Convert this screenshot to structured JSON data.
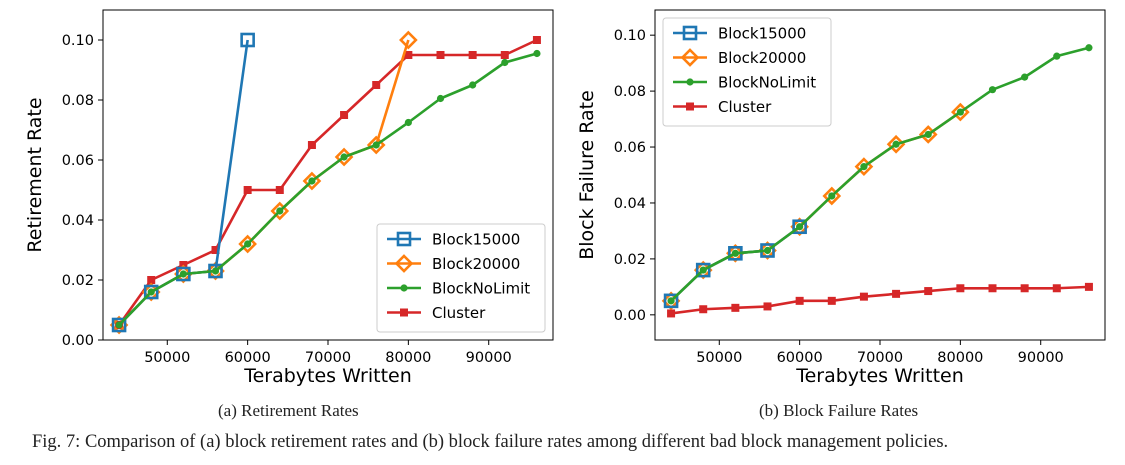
{
  "colors": {
    "block15000": "#1f77b4",
    "block20000": "#ff7f0e",
    "blocknolimit": "#2ca02c",
    "cluster": "#d62728"
  },
  "chart_data": [
    {
      "type": "line",
      "subcaption": "(a) Retirement Rates",
      "xlabel": "Terabytes Written",
      "ylabel": "Retirement Rate",
      "xlim": [
        42000,
        98000
      ],
      "ylim": [
        0.0,
        0.11
      ],
      "xticks": [
        50000,
        60000,
        70000,
        80000,
        90000
      ],
      "yticks": [
        0.0,
        0.02,
        0.04,
        0.06,
        0.08,
        0.1
      ],
      "ytick_labels": [
        "0.00",
        "0.02",
        "0.04",
        "0.06",
        "0.08",
        "0.10"
      ],
      "legend_loc": "lower-right",
      "grid": false,
      "series": [
        {
          "name": "Block15000",
          "marker": "square-open",
          "x": [
            44000,
            48000,
            52000,
            56000,
            60000
          ],
          "y": [
            0.005,
            0.016,
            0.022,
            0.023,
            0.1
          ]
        },
        {
          "name": "Block20000",
          "marker": "diamond-open",
          "x": [
            44000,
            48000,
            52000,
            56000,
            60000,
            64000,
            68000,
            72000,
            76000,
            80000
          ],
          "y": [
            0.005,
            0.016,
            0.022,
            0.023,
            0.032,
            0.043,
            0.053,
            0.061,
            0.065,
            0.1
          ]
        },
        {
          "name": "BlockNoLimit",
          "marker": "circle",
          "x": [
            44000,
            48000,
            52000,
            56000,
            60000,
            64000,
            68000,
            72000,
            76000,
            80000,
            84000,
            88000,
            92000,
            96000
          ],
          "y": [
            0.005,
            0.016,
            0.022,
            0.023,
            0.032,
            0.043,
            0.053,
            0.061,
            0.065,
            0.0725,
            0.0805,
            0.085,
            0.0925,
            0.0955
          ]
        },
        {
          "name": "Cluster",
          "marker": "square",
          "x": [
            44000,
            48000,
            52000,
            56000,
            60000,
            64000,
            68000,
            72000,
            76000,
            80000,
            84000,
            88000,
            92000,
            96000
          ],
          "y": [
            0.005,
            0.02,
            0.025,
            0.03,
            0.05,
            0.05,
            0.065,
            0.075,
            0.085,
            0.095,
            0.095,
            0.095,
            0.095,
            0.1
          ]
        }
      ]
    },
    {
      "type": "line",
      "subcaption": "(b) Block Failure Rates",
      "xlabel": "Terabytes Written",
      "ylabel": "Block Failure Rate",
      "xlim": [
        42000,
        98000
      ],
      "ylim": [
        -0.009,
        0.109
      ],
      "xticks": [
        50000,
        60000,
        70000,
        80000,
        90000
      ],
      "yticks": [
        0.0,
        0.02,
        0.04,
        0.06,
        0.08,
        0.1
      ],
      "ytick_labels": [
        "0.00",
        "0.02",
        "0.04",
        "0.06",
        "0.08",
        "0.10"
      ],
      "legend_loc": "upper-left",
      "grid": false,
      "series": [
        {
          "name": "Block15000",
          "marker": "square-open",
          "x": [
            44000,
            48000,
            52000,
            56000,
            60000
          ],
          "y": [
            0.005,
            0.016,
            0.022,
            0.023,
            0.0315
          ]
        },
        {
          "name": "Block20000",
          "marker": "diamond-open",
          "x": [
            44000,
            48000,
            52000,
            56000,
            60000,
            64000,
            68000,
            72000,
            76000,
            80000
          ],
          "y": [
            0.005,
            0.016,
            0.022,
            0.023,
            0.0315,
            0.0425,
            0.053,
            0.061,
            0.0645,
            0.0725
          ]
        },
        {
          "name": "BlockNoLimit",
          "marker": "circle",
          "x": [
            44000,
            48000,
            52000,
            56000,
            60000,
            64000,
            68000,
            72000,
            76000,
            80000,
            84000,
            88000,
            92000,
            96000
          ],
          "y": [
            0.005,
            0.016,
            0.022,
            0.023,
            0.0315,
            0.0425,
            0.053,
            0.061,
            0.0645,
            0.0725,
            0.0805,
            0.085,
            0.0925,
            0.0955
          ]
        },
        {
          "name": "Cluster",
          "marker": "square",
          "x": [
            44000,
            48000,
            52000,
            56000,
            60000,
            64000,
            68000,
            72000,
            76000,
            80000,
            84000,
            88000,
            92000,
            96000
          ],
          "y": [
            0.0005,
            0.002,
            0.0025,
            0.003,
            0.005,
            0.005,
            0.0065,
            0.0075,
            0.0085,
            0.0095,
            0.0095,
            0.0095,
            0.0095,
            0.01
          ]
        }
      ]
    }
  ],
  "figure_caption": "Fig. 7: Comparison of (a) block retirement rates and (b) block failure rates among different bad block management policies."
}
